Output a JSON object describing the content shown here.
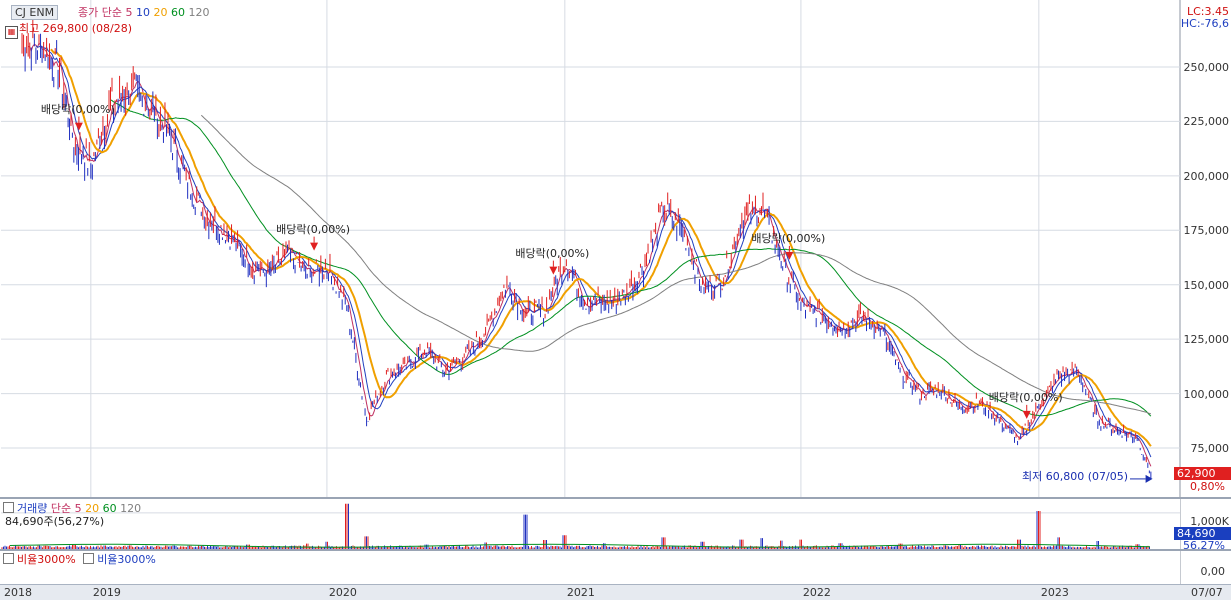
{
  "header": {
    "stock_name": "CJ ENM",
    "ma_legend": {
      "prefix": "종가 단순",
      "periods": [
        "5",
        "10",
        "20",
        "60",
        "120"
      ]
    },
    "high_label": "최고 269,800 (08/28)",
    "low_label": "최저 60,800 (07/05)",
    "lc_label": "LC:3.45",
    "hc_label": "HC:-76,6"
  },
  "colors": {
    "price_up": "#e02020",
    "price_down": "#2030c0",
    "ma5": "#c03060",
    "ma10": "#2040c0",
    "ma20": "#f0a000",
    "ma60": "#009020",
    "ma120": "#808080",
    "grid": "#d6dbe3",
    "current_price_box": "#e02020",
    "volume_box": "#1a3fbf"
  },
  "volume_panel": {
    "legend_title": "거래량",
    "legend_prefix": "단순",
    "periods": [
      "5",
      "20",
      "60",
      "120"
    ],
    "current_label": "84,690주(56,27%)",
    "ticks": [
      "1,000K"
    ],
    "current_value_label": "84,690",
    "current_pct_label": "56,27%"
  },
  "ratio_panel": {
    "item1": "비율3000%",
    "item2": "비율3000%",
    "tick": "0,00"
  },
  "current_price_label": "62,900",
  "current_change_label": "0,80%",
  "dividend_markers": [
    {
      "label": "배당락(0,00%)",
      "x": "2018-12-27"
    },
    {
      "label": "배당락(0,00%)",
      "x": "2019-12-27"
    },
    {
      "label": "배당락(0,00%)",
      "x": "2020-12-29"
    },
    {
      "label": "배당락(0,00%)",
      "x": "2021-12-29"
    },
    {
      "label": "배당락(0,00%)",
      "x": "2022-12-28"
    }
  ],
  "chart_data": [
    {
      "type": "line",
      "title": "CJ ENM",
      "xlabel": "",
      "ylabel": "",
      "x_ticks": [
        "2018",
        "2019",
        "2020",
        "2021",
        "2022",
        "2023",
        "07/07"
      ],
      "y_ticks": [
        75000,
        100000,
        125000,
        150000,
        175000,
        200000,
        225000,
        250000
      ],
      "y_tick_labels": [
        "75,000",
        "100,000",
        "125,000",
        "150,000",
        "175,000",
        "200,000",
        "225,000",
        "250,000"
      ],
      "ylim": [
        55000,
        270000
      ],
      "grid": true,
      "series": [
        {
          "name": "종가",
          "x": [
            "2018-10",
            "2018-11",
            "2018-12",
            "2019-01",
            "2019-02",
            "2019-03",
            "2019-04",
            "2019-05",
            "2019-06",
            "2019-07",
            "2019-08",
            "2019-09",
            "2019-10",
            "2019-11",
            "2019-12",
            "2020-01",
            "2020-02",
            "2020-03",
            "2020-04",
            "2020-05",
            "2020-06",
            "2020-07",
            "2020-08",
            "2020-09",
            "2020-10",
            "2020-11",
            "2020-12",
            "2021-01",
            "2021-02",
            "2021-03",
            "2021-04",
            "2021-05",
            "2021-06",
            "2021-07",
            "2021-08",
            "2021-09",
            "2021-10",
            "2021-11",
            "2021-12",
            "2022-01",
            "2022-02",
            "2022-03",
            "2022-04",
            "2022-05",
            "2022-06",
            "2022-07",
            "2022-08",
            "2022-09",
            "2022-10",
            "2022-11",
            "2022-12",
            "2023-01",
            "2023-02",
            "2023-03",
            "2023-04",
            "2023-05",
            "2023-06",
            "2023-07"
          ],
          "values": [
            258000,
            248000,
            215000,
            205000,
            232000,
            240000,
            232000,
            218000,
            195000,
            180000,
            173000,
            160000,
            155000,
            165000,
            155000,
            158000,
            140000,
            88000,
            108000,
            113000,
            120000,
            110000,
            118000,
            128000,
            150000,
            137000,
            138000,
            162000,
            142000,
            142000,
            145000,
            158000,
            185000,
            175000,
            148000,
            152000,
            180000,
            186000,
            162000,
            140000,
            136000,
            130000,
            135000,
            130000,
            110000,
            100000,
            102000,
            94000,
            96000,
            88000,
            78000,
            95000,
            108000,
            110000,
            88000,
            83000,
            80000,
            62900
          ]
        },
        {
          "name": "5",
          "x": [],
          "values": []
        },
        {
          "name": "10",
          "x": [],
          "values": []
        },
        {
          "name": "20",
          "x": [],
          "values": []
        },
        {
          "name": "60",
          "x": [],
          "values": []
        },
        {
          "name": "120",
          "x": [],
          "values": []
        }
      ],
      "annotations": [
        "최고 269,800 (08/28)",
        "최저 60,800 (07/05)"
      ]
    },
    {
      "type": "bar",
      "title": "거래량",
      "xlabel": "",
      "ylabel": "",
      "y_ticks": [
        1000000
      ],
      "y_tick_labels": [
        "1,000K"
      ],
      "ylim": [
        0,
        1300000
      ],
      "series": [
        {
          "name": "거래량",
          "x": [
            "2018-10",
            "2018-12",
            "2019-03",
            "2019-06",
            "2019-09",
            "2019-12",
            "2020-01",
            "2020-02",
            "2020-03",
            "2020-06",
            "2020-09",
            "2020-11",
            "2020-12",
            "2021-01",
            "2021-03",
            "2021-06",
            "2021-08",
            "2021-10",
            "2021-11",
            "2021-12",
            "2022-01",
            "2022-03",
            "2022-06",
            "2022-09",
            "2022-12",
            "2023-01",
            "2023-02",
            "2023-04",
            "2023-06",
            "2023-07"
          ],
          "values": [
            90000,
            110000,
            100000,
            90000,
            120000,
            150000,
            200000,
            1250000,
            350000,
            120000,
            180000,
            950000,
            250000,
            380000,
            160000,
            320000,
            200000,
            260000,
            300000,
            230000,
            260000,
            160000,
            150000,
            130000,
            260000,
            1050000,
            320000,
            220000,
            130000,
            84690
          ]
        }
      ]
    }
  ]
}
